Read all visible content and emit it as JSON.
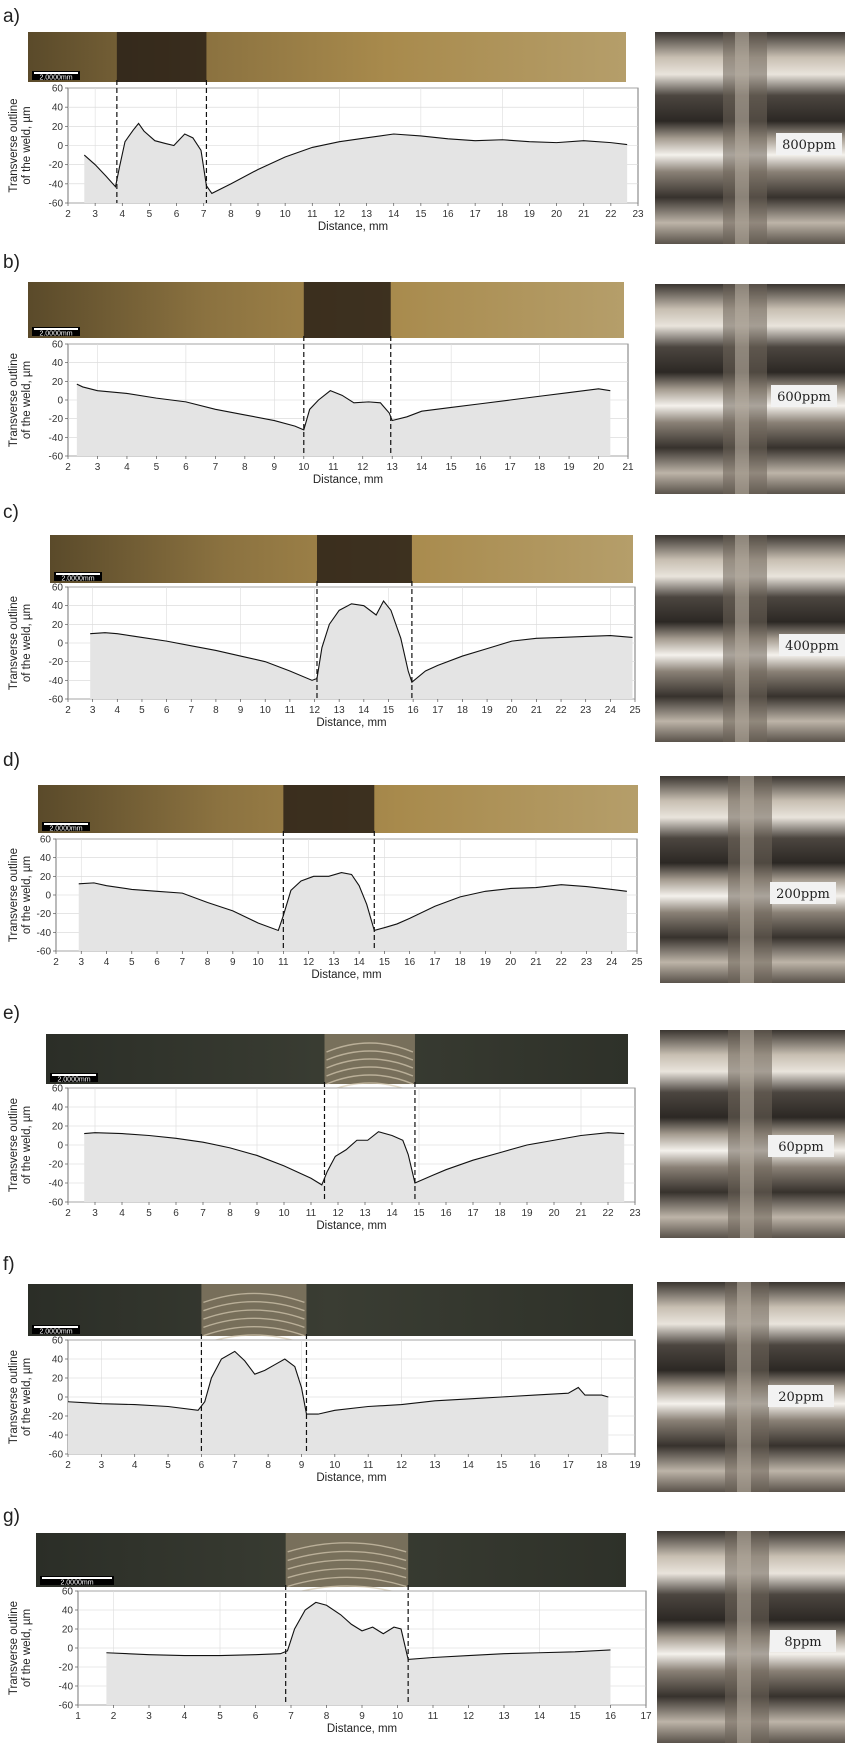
{
  "figure": {
    "scalebar_label": "2.0000mm",
    "ylabel_line1": "Transverse outline",
    "ylabel_line2": "of the weld, µm",
    "xlabel": "Distance, mm"
  },
  "chart_data": [
    {
      "panel": "a)",
      "type": "area",
      "ppm": "800ppm",
      "xlim": [
        2,
        23
      ],
      "ylim": [
        -60,
        60
      ],
      "xticks": [
        2,
        3,
        4,
        5,
        6,
        7,
        8,
        9,
        10,
        11,
        12,
        13,
        14,
        15,
        16,
        17,
        18,
        19,
        20,
        21,
        22,
        23
      ],
      "yticks": [
        -60,
        -40,
        -20,
        0,
        20,
        40,
        60
      ],
      "weld_boundaries": [
        3.8,
        7.1
      ],
      "points": [
        [
          2.6,
          -10
        ],
        [
          3.0,
          -20
        ],
        [
          3.4,
          -32
        ],
        [
          3.75,
          -43
        ],
        [
          3.9,
          -22
        ],
        [
          4.1,
          4
        ],
        [
          4.4,
          16
        ],
        [
          4.6,
          23
        ],
        [
          4.8,
          15
        ],
        [
          5.2,
          5
        ],
        [
          5.6,
          2
        ],
        [
          5.9,
          0
        ],
        [
          6.1,
          6
        ],
        [
          6.3,
          12
        ],
        [
          6.6,
          8
        ],
        [
          6.9,
          -5
        ],
        [
          7.1,
          -42
        ],
        [
          7.3,
          -50
        ],
        [
          8.0,
          -40
        ],
        [
          9.0,
          -25
        ],
        [
          10.0,
          -12
        ],
        [
          11.0,
          -2
        ],
        [
          12.0,
          4
        ],
        [
          13.0,
          8
        ],
        [
          14.0,
          12
        ],
        [
          15.0,
          10
        ],
        [
          16.0,
          7
        ],
        [
          17.0,
          5
        ],
        [
          18.0,
          6
        ],
        [
          19.0,
          4
        ],
        [
          20.0,
          3
        ],
        [
          21.0,
          5
        ],
        [
          22.0,
          3
        ],
        [
          22.6,
          1
        ]
      ]
    },
    {
      "panel": "b)",
      "type": "area",
      "ppm": "600ppm",
      "xlim": [
        2,
        21
      ],
      "ylim": [
        -60,
        60
      ],
      "xticks": [
        2,
        3,
        4,
        5,
        6,
        7,
        8,
        9,
        10,
        11,
        12,
        13,
        14,
        15,
        16,
        17,
        18,
        19,
        20,
        21
      ],
      "yticks": [
        -60,
        -40,
        -20,
        0,
        20,
        40,
        60
      ],
      "weld_boundaries": [
        10.0,
        12.95
      ],
      "points": [
        [
          2.3,
          17
        ],
        [
          2.5,
          14
        ],
        [
          3.0,
          10
        ],
        [
          4.0,
          7
        ],
        [
          5.0,
          2
        ],
        [
          6.0,
          -2
        ],
        [
          7.0,
          -10
        ],
        [
          8.0,
          -16
        ],
        [
          9.0,
          -22
        ],
        [
          9.7,
          -28
        ],
        [
          10.0,
          -32
        ],
        [
          10.2,
          -10
        ],
        [
          10.5,
          0
        ],
        [
          10.9,
          10
        ],
        [
          11.3,
          5
        ],
        [
          11.7,
          -3
        ],
        [
          12.2,
          -2
        ],
        [
          12.6,
          -3
        ],
        [
          12.9,
          -14
        ],
        [
          13.0,
          -22
        ],
        [
          13.5,
          -18
        ],
        [
          14.0,
          -12
        ],
        [
          15.0,
          -8
        ],
        [
          16.0,
          -4
        ],
        [
          17.0,
          0
        ],
        [
          18.0,
          4
        ],
        [
          19.0,
          8
        ],
        [
          20.0,
          12
        ],
        [
          20.4,
          10
        ]
      ]
    },
    {
      "panel": "c)",
      "type": "area",
      "ppm": "400ppm",
      "xlim": [
        2,
        25
      ],
      "ylim": [
        -60,
        60
      ],
      "xticks": [
        2,
        3,
        4,
        5,
        6,
        7,
        8,
        9,
        10,
        11,
        12,
        13,
        14,
        15,
        16,
        17,
        18,
        19,
        20,
        21,
        22,
        23,
        24,
        25
      ],
      "yticks": [
        -60,
        -40,
        -20,
        0,
        20,
        40,
        60
      ],
      "weld_boundaries": [
        12.1,
        15.95
      ],
      "points": [
        [
          2.9,
          10
        ],
        [
          3.5,
          11
        ],
        [
          4.0,
          10
        ],
        [
          5.0,
          6
        ],
        [
          6.0,
          2
        ],
        [
          7.0,
          -3
        ],
        [
          8.0,
          -8
        ],
        [
          9.0,
          -14
        ],
        [
          10.0,
          -20
        ],
        [
          11.0,
          -30
        ],
        [
          11.9,
          -40
        ],
        [
          12.1,
          -38
        ],
        [
          12.3,
          -5
        ],
        [
          12.6,
          20
        ],
        [
          13.0,
          35
        ],
        [
          13.5,
          42
        ],
        [
          14.0,
          40
        ],
        [
          14.5,
          30
        ],
        [
          14.8,
          45
        ],
        [
          15.1,
          35
        ],
        [
          15.5,
          5
        ],
        [
          15.8,
          -30
        ],
        [
          15.95,
          -42
        ],
        [
          16.5,
          -30
        ],
        [
          17.0,
          -24
        ],
        [
          18.0,
          -14
        ],
        [
          19.0,
          -6
        ],
        [
          20.0,
          2
        ],
        [
          21.0,
          5
        ],
        [
          22.0,
          6
        ],
        [
          23.0,
          7
        ],
        [
          24.0,
          8
        ],
        [
          24.9,
          6
        ]
      ]
    },
    {
      "panel": "d)",
      "type": "area",
      "ppm": "200ppm",
      "xlim": [
        2,
        25
      ],
      "ylim": [
        -60,
        60
      ],
      "xticks": [
        2,
        3,
        4,
        5,
        6,
        7,
        8,
        9,
        10,
        11,
        12,
        13,
        14,
        15,
        16,
        17,
        18,
        19,
        20,
        21,
        22,
        23,
        24,
        25
      ],
      "yticks": [
        -60,
        -40,
        -20,
        0,
        20,
        40,
        60
      ],
      "weld_boundaries": [
        11.0,
        14.6
      ],
      "points": [
        [
          2.9,
          12
        ],
        [
          3.5,
          13
        ],
        [
          4.0,
          10
        ],
        [
          5.0,
          6
        ],
        [
          6.0,
          4
        ],
        [
          7.0,
          2
        ],
        [
          8.0,
          -8
        ],
        [
          9.0,
          -17
        ],
        [
          10.0,
          -30
        ],
        [
          10.8,
          -38
        ],
        [
          11.0,
          -22
        ],
        [
          11.3,
          5
        ],
        [
          11.7,
          15
        ],
        [
          12.2,
          20
        ],
        [
          12.8,
          20
        ],
        [
          13.3,
          24
        ],
        [
          13.7,
          22
        ],
        [
          14.0,
          10
        ],
        [
          14.3,
          -10
        ],
        [
          14.6,
          -38
        ],
        [
          15.0,
          -35
        ],
        [
          15.5,
          -31
        ],
        [
          16.0,
          -25
        ],
        [
          17.0,
          -12
        ],
        [
          18.0,
          -2
        ],
        [
          19.0,
          4
        ],
        [
          20.0,
          7
        ],
        [
          21.0,
          8
        ],
        [
          22.0,
          11
        ],
        [
          23.0,
          9
        ],
        [
          24.0,
          6
        ],
        [
          24.6,
          4
        ]
      ]
    },
    {
      "panel": "e)",
      "type": "area",
      "ppm": "60ppm",
      "xlim": [
        2,
        23
      ],
      "ylim": [
        -60,
        60
      ],
      "xticks": [
        2,
        3,
        4,
        5,
        6,
        7,
        8,
        9,
        10,
        11,
        12,
        13,
        14,
        15,
        16,
        17,
        18,
        19,
        20,
        21,
        22,
        23
      ],
      "yticks": [
        -60,
        -40,
        -20,
        0,
        20,
        40,
        60
      ],
      "weld_boundaries": [
        11.5,
        14.85
      ],
      "points": [
        [
          2.6,
          12
        ],
        [
          3.0,
          13
        ],
        [
          4.0,
          12
        ],
        [
          5.0,
          10
        ],
        [
          6.0,
          7
        ],
        [
          7.0,
          3
        ],
        [
          8.0,
          -3
        ],
        [
          9.0,
          -11
        ],
        [
          10.0,
          -22
        ],
        [
          11.0,
          -35
        ],
        [
          11.4,
          -42
        ],
        [
          11.6,
          -28
        ],
        [
          11.9,
          -12
        ],
        [
          12.3,
          -5
        ],
        [
          12.7,
          5
        ],
        [
          13.1,
          5
        ],
        [
          13.5,
          14
        ],
        [
          14.0,
          10
        ],
        [
          14.4,
          5
        ],
        [
          14.6,
          -10
        ],
        [
          14.85,
          -40
        ],
        [
          15.5,
          -32
        ],
        [
          16.0,
          -26
        ],
        [
          17.0,
          -16
        ],
        [
          18.0,
          -8
        ],
        [
          19.0,
          0
        ],
        [
          20.0,
          5
        ],
        [
          21.0,
          10
        ],
        [
          22.0,
          13
        ],
        [
          22.6,
          12
        ]
      ]
    },
    {
      "panel": "f)",
      "type": "area",
      "ppm": "20ppm",
      "xlim": [
        2,
        19
      ],
      "ylim": [
        -60,
        60
      ],
      "xticks": [
        2,
        3,
        4,
        5,
        6,
        7,
        8,
        9,
        10,
        11,
        12,
        13,
        14,
        15,
        16,
        17,
        18,
        19
      ],
      "yticks": [
        -60,
        -40,
        -20,
        0,
        20,
        40,
        60
      ],
      "weld_boundaries": [
        6.0,
        9.15
      ],
      "points": [
        [
          2.0,
          -5
        ],
        [
          2.5,
          -6
        ],
        [
          3.0,
          -7
        ],
        [
          4.0,
          -8
        ],
        [
          5.0,
          -10
        ],
        [
          5.9,
          -14
        ],
        [
          6.1,
          -5
        ],
        [
          6.3,
          20
        ],
        [
          6.6,
          40
        ],
        [
          7.0,
          48
        ],
        [
          7.3,
          38
        ],
        [
          7.6,
          24
        ],
        [
          7.9,
          28
        ],
        [
          8.2,
          34
        ],
        [
          8.5,
          40
        ],
        [
          8.8,
          32
        ],
        [
          9.0,
          10
        ],
        [
          9.15,
          -18
        ],
        [
          9.5,
          -18
        ],
        [
          10.0,
          -14
        ],
        [
          11.0,
          -10
        ],
        [
          12.0,
          -8
        ],
        [
          13.0,
          -4
        ],
        [
          14.0,
          -2
        ],
        [
          15.0,
          0
        ],
        [
          16.0,
          2
        ],
        [
          17.0,
          4
        ],
        [
          17.3,
          10
        ],
        [
          17.5,
          2
        ],
        [
          18.0,
          2
        ],
        [
          18.2,
          0
        ]
      ]
    },
    {
      "panel": "g)",
      "type": "area",
      "ppm": "8ppm",
      "xlim": [
        1,
        17
      ],
      "ylim": [
        -60,
        60
      ],
      "xticks": [
        1,
        2,
        3,
        4,
        5,
        6,
        7,
        8,
        9,
        10,
        11,
        12,
        13,
        14,
        15,
        16,
        17
      ],
      "yticks": [
        -60,
        -40,
        -20,
        0,
        20,
        40,
        60
      ],
      "weld_boundaries": [
        6.85,
        10.3
      ],
      "points": [
        [
          1.8,
          -5
        ],
        [
          3.0,
          -7
        ],
        [
          4.0,
          -8
        ],
        [
          5.0,
          -8
        ],
        [
          6.0,
          -7
        ],
        [
          6.7,
          -6
        ],
        [
          6.9,
          -3
        ],
        [
          7.1,
          20
        ],
        [
          7.4,
          40
        ],
        [
          7.7,
          48
        ],
        [
          8.0,
          45
        ],
        [
          8.4,
          35
        ],
        [
          8.7,
          25
        ],
        [
          9.0,
          18
        ],
        [
          9.3,
          22
        ],
        [
          9.6,
          15
        ],
        [
          9.9,
          22
        ],
        [
          10.1,
          20
        ],
        [
          10.3,
          -12
        ],
        [
          11.0,
          -10
        ],
        [
          12.0,
          -8
        ],
        [
          13.0,
          -6
        ],
        [
          14.0,
          -5
        ],
        [
          15.0,
          -4
        ],
        [
          16.0,
          -2
        ]
      ]
    }
  ]
}
